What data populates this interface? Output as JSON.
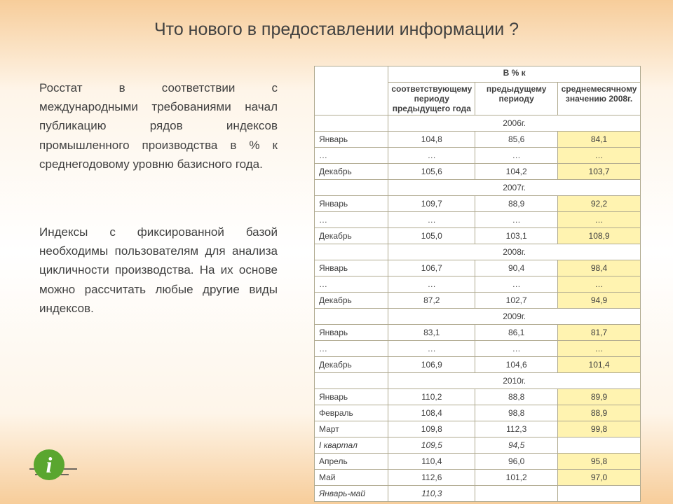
{
  "title": "Что нового в предоставлении информации ?",
  "para1": "Росстат в соответствии с международными требованиями начал публикацию рядов индексов промышленного производства в % к среднегодовому уровню базисного года.",
  "para2": "Индексы с фиксированной базой необходимы пользователям для анализа цикличности производства. На их основе можно рассчитать любые другие виды индексов.",
  "table": {
    "super_header": "В % к",
    "col_headers": [
      "соответствующему периоду предыдущего года",
      "предыдущему периоду",
      "среднемесячному значению 2008г."
    ],
    "header_color": "#ffffff",
    "highlight_color": "#fff3b0",
    "border_color": "#b0aa90",
    "fontsize": 12,
    "groups": [
      {
        "year": "2006г.",
        "rows": [
          {
            "label": "Январь",
            "v": [
              "104,8",
              "85,6",
              "84,1"
            ],
            "hl": true
          },
          {
            "label": "…",
            "v": [
              "…",
              "…",
              "…"
            ],
            "hl": true
          },
          {
            "label": "Декабрь",
            "v": [
              "105,6",
              "104,2",
              "103,7"
            ],
            "hl": true
          }
        ]
      },
      {
        "year": "2007г.",
        "rows": [
          {
            "label": "Январь",
            "v": [
              "109,7",
              "88,9",
              "92,2"
            ],
            "hl": true
          },
          {
            "label": "…",
            "v": [
              "…",
              "…",
              "…"
            ],
            "hl": true
          },
          {
            "label": "Декабрь",
            "v": [
              "105,0",
              "103,1",
              "108,9"
            ],
            "hl": true
          }
        ]
      },
      {
        "year": "2008г.",
        "rows": [
          {
            "label": "Январь",
            "v": [
              "106,7",
              "90,4",
              "98,4"
            ],
            "hl": true
          },
          {
            "label": "…",
            "v": [
              "…",
              "…",
              "…"
            ],
            "hl": true
          },
          {
            "label": "Декабрь",
            "v": [
              "87,2",
              "102,7",
              "94,9"
            ],
            "hl": true
          }
        ]
      },
      {
        "year": "2009г.",
        "rows": [
          {
            "label": "Январь",
            "v": [
              "83,1",
              "86,1",
              "81,7"
            ],
            "hl": true
          },
          {
            "label": "…",
            "v": [
              "…",
              "…",
              "…"
            ],
            "hl": true
          },
          {
            "label": "Декабрь",
            "v": [
              "106,9",
              "104,6",
              "101,4"
            ],
            "hl": true
          }
        ]
      },
      {
        "year": "2010г.",
        "rows": [
          {
            "label": "Январь",
            "v": [
              "110,2",
              "88,8",
              "89,9"
            ],
            "hl": true
          },
          {
            "label": "Февраль",
            "v": [
              "108,4",
              "98,8",
              "88,9"
            ],
            "hl": true
          },
          {
            "label": "Март",
            "v": [
              "109,8",
              "112,3",
              "99,8"
            ],
            "hl": true
          },
          {
            "label": "I квартал",
            "v": [
              "109,5",
              "94,5",
              ""
            ],
            "hl": false,
            "italic": true
          },
          {
            "label": "Апрель",
            "v": [
              "110,4",
              "96,0",
              "95,8"
            ],
            "hl": true
          },
          {
            "label": "Май",
            "v": [
              "112,6",
              "101,2",
              "97,0"
            ],
            "hl": true
          },
          {
            "label": "Январь-май",
            "v": [
              "110,3",
              "",
              ""
            ],
            "hl": false,
            "italic": true
          }
        ]
      }
    ]
  },
  "icon": {
    "circle_fill": "#5aa62f",
    "glyph": "i",
    "line_color": "#404040"
  }
}
